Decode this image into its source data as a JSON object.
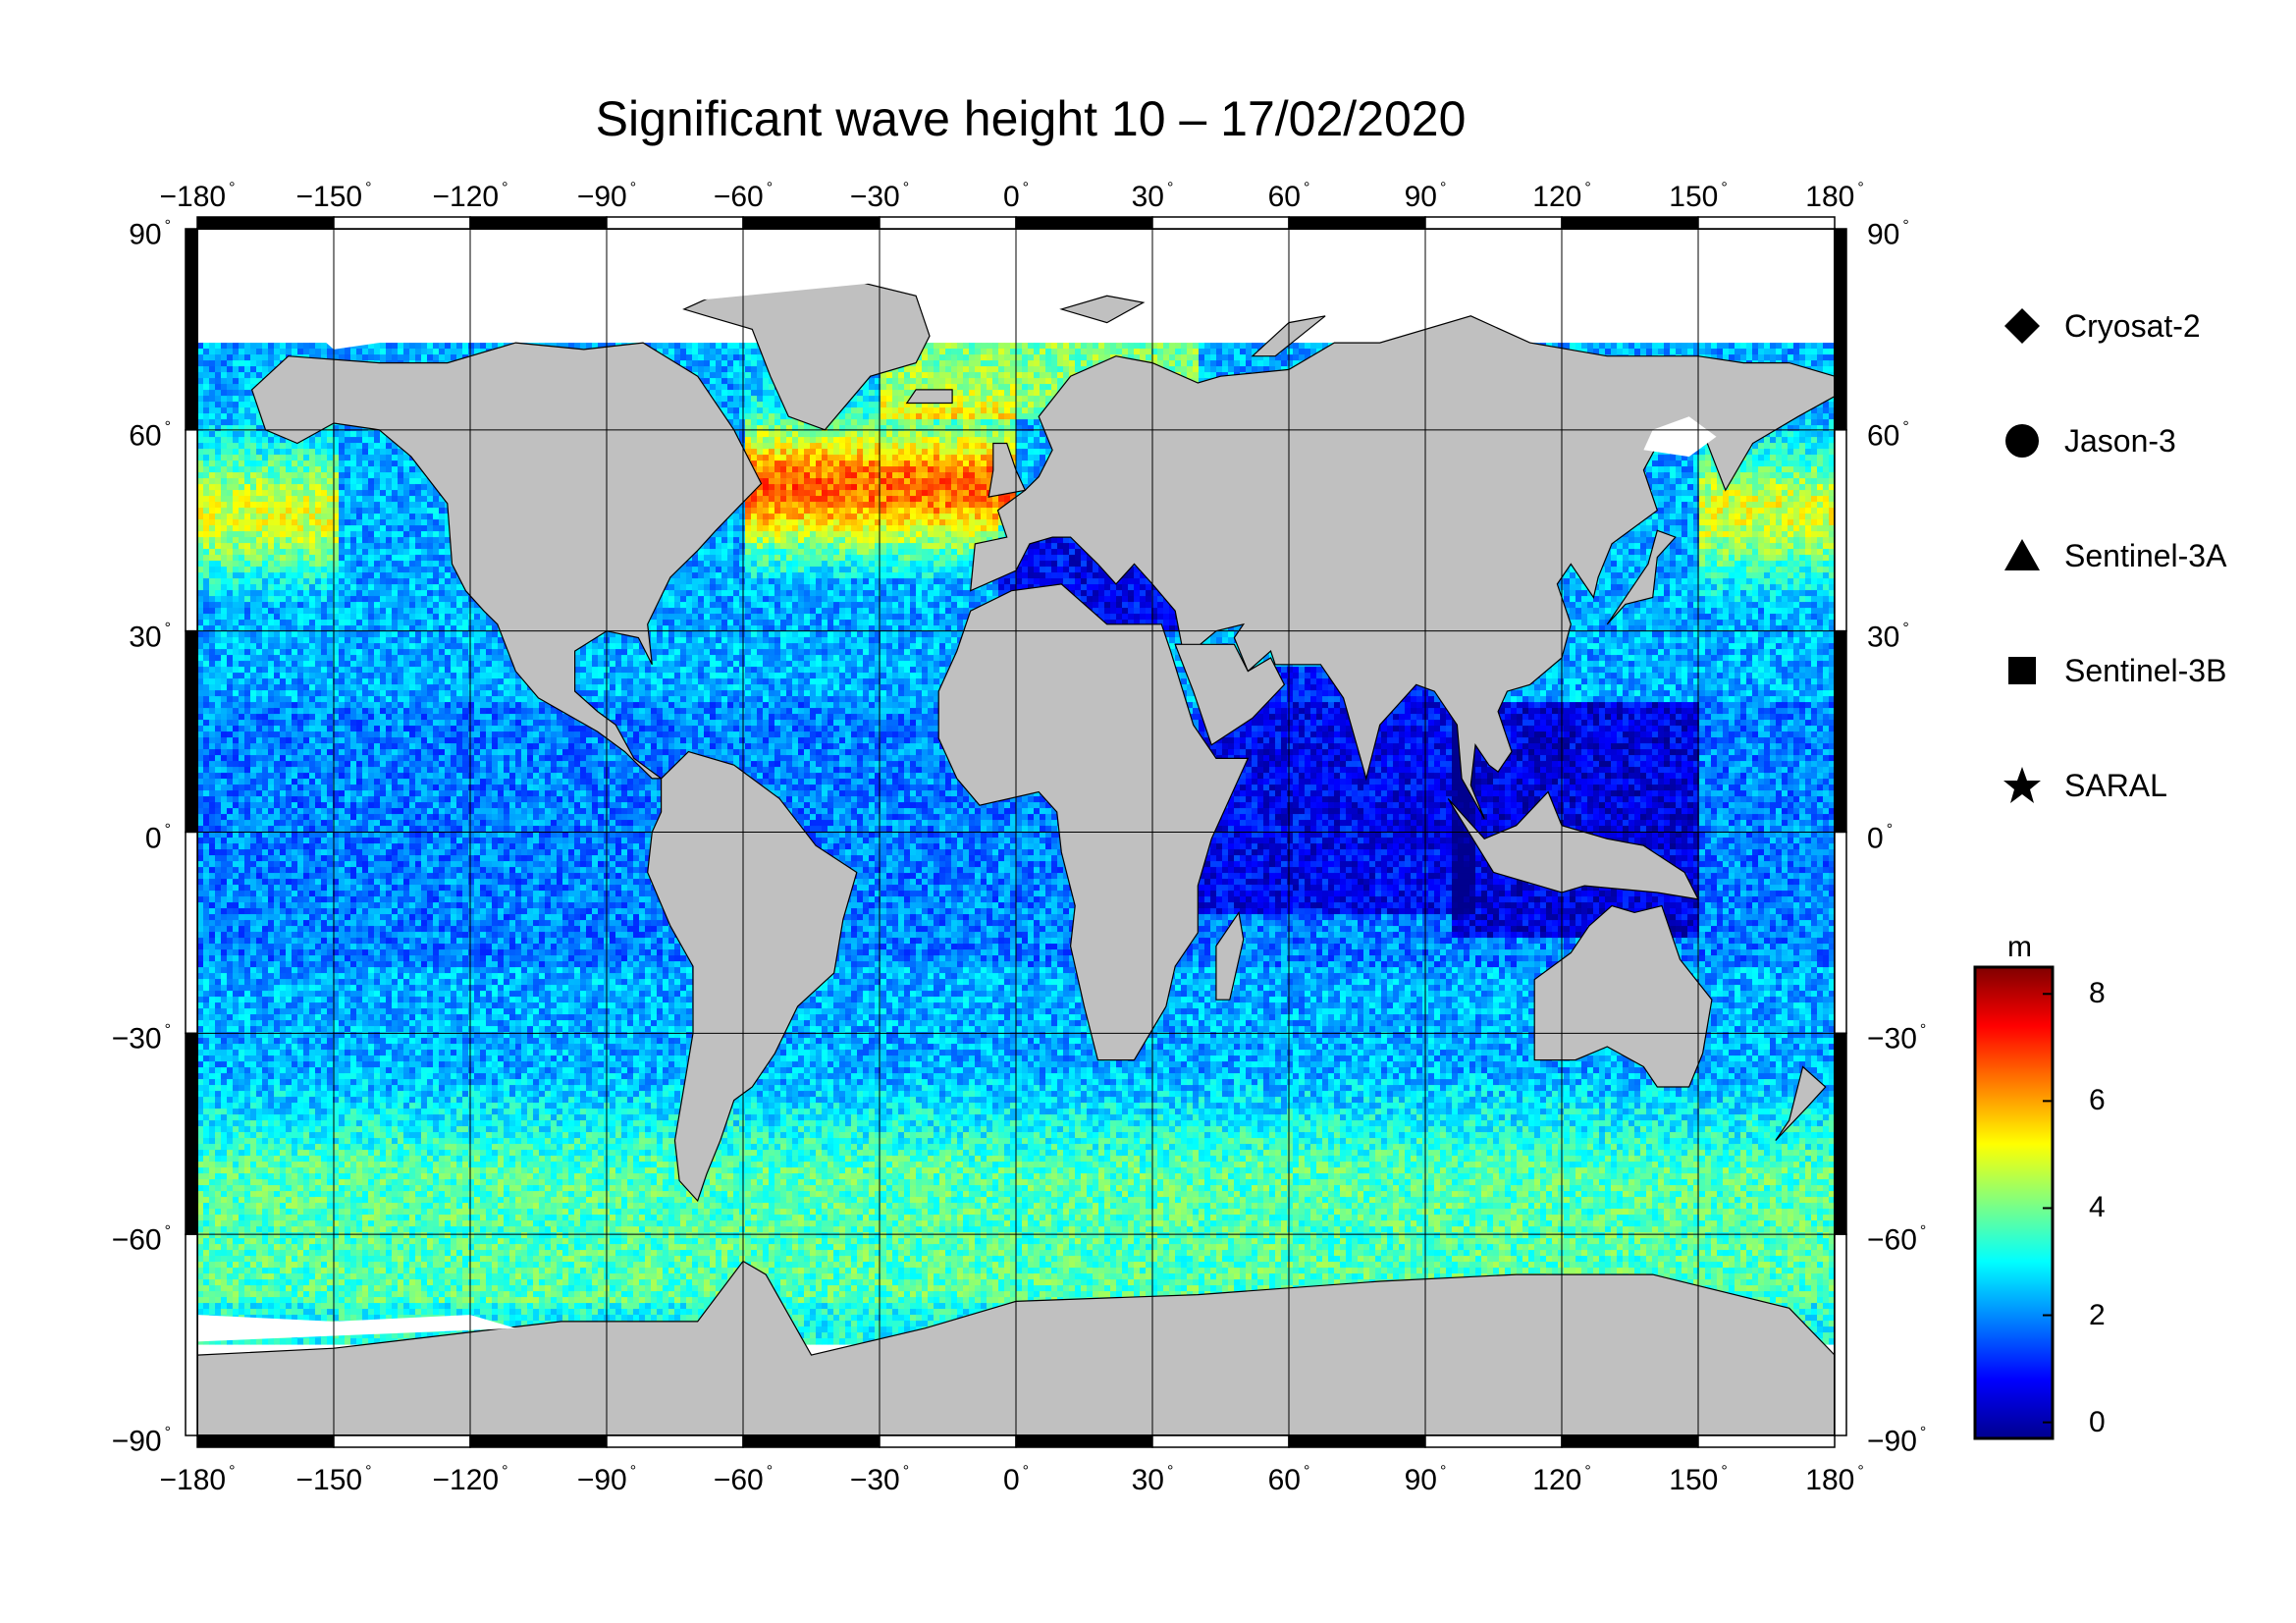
{
  "title": "Significant wave height 10 – 17/02/2020",
  "lon_ticks": [
    {
      "value": -180,
      "label": "−180"
    },
    {
      "value": -150,
      "label": "−150"
    },
    {
      "value": -120,
      "label": "−120"
    },
    {
      "value": -90,
      "label": "−90"
    },
    {
      "value": -60,
      "label": "−60"
    },
    {
      "value": -30,
      "label": "−30"
    },
    {
      "value": 0,
      "label": "0"
    },
    {
      "value": 30,
      "label": "30"
    },
    {
      "value": 60,
      "label": "60"
    },
    {
      "value": 90,
      "label": "90"
    },
    {
      "value": 120,
      "label": "120"
    },
    {
      "value": 150,
      "label": "150"
    },
    {
      "value": 180,
      "label": "180"
    }
  ],
  "lat_ticks": [
    {
      "value": 90,
      "label": "90"
    },
    {
      "value": 60,
      "label": "60"
    },
    {
      "value": 30,
      "label": "30"
    },
    {
      "value": 0,
      "label": "0"
    },
    {
      "value": -30,
      "label": "−30"
    },
    {
      "value": -60,
      "label": "−60"
    },
    {
      "value": -90,
      "label": "−90"
    }
  ],
  "degree_symbol": "°",
  "legend": [
    {
      "name": "Cryosat-2",
      "icon": "diamond-icon"
    },
    {
      "name": "Jason-3",
      "icon": "circle-icon"
    },
    {
      "name": "Sentinel-3A",
      "icon": "triangle-icon"
    },
    {
      "name": "Sentinel-3B",
      "icon": "square-icon"
    },
    {
      "name": "SARAL",
      "icon": "star-icon"
    }
  ],
  "colorbar": {
    "unit": "m",
    "min": -0.3,
    "max": 8.5,
    "ticks": [
      {
        "value": 8,
        "label": "8"
      },
      {
        "value": 6,
        "label": "6"
      },
      {
        "value": 4,
        "label": "4"
      },
      {
        "value": 2,
        "label": "2"
      },
      {
        "value": 0,
        "label": "0"
      }
    ],
    "colors": [
      "#00008f",
      "#0000ff",
      "#0080ff",
      "#00ffff",
      "#80ff80",
      "#ffff00",
      "#ff8000",
      "#ff0000",
      "#800000"
    ]
  },
  "colors": {
    "land": "#c0c0c0",
    "ice": "#ffffff",
    "frame": "#000000"
  }
}
